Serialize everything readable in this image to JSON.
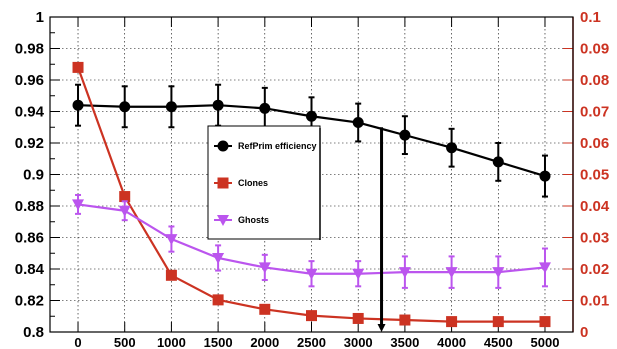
{
  "chart_data": {
    "type": "line",
    "x": [
      0,
      500,
      1000,
      1500,
      2000,
      2500,
      3000,
      3500,
      4000,
      4500,
      5000
    ],
    "xticks": [
      "0",
      "500",
      "1000",
      "1500",
      "2000",
      "2500",
      "3000",
      "3500",
      "4000",
      "4500",
      "5000"
    ],
    "xlim": [
      -300,
      5300
    ],
    "left_axis": {
      "ylim": [
        0.8,
        1.0
      ],
      "ticks": [
        "0.8",
        "0.82",
        "0.84",
        "0.86",
        "0.88",
        "0.9",
        "0.92",
        "0.94",
        "0.96",
        "0.98",
        "1"
      ],
      "color": "#000000"
    },
    "right_axis": {
      "ylim": [
        0,
        0.1
      ],
      "ticks": [
        "0",
        "0.01",
        "0.02",
        "0.03",
        "0.04",
        "0.05",
        "0.06",
        "0.07",
        "0.08",
        "0.09",
        "0.1"
      ],
      "color": "#cc3322"
    },
    "grid": true,
    "legend_placement": "center",
    "series": [
      {
        "name": "RefPrim efficiency",
        "axis": "left",
        "color": "#000000",
        "marker": "circle",
        "values": [
          0.944,
          0.943,
          0.943,
          0.944,
          0.942,
          0.937,
          0.933,
          0.925,
          0.917,
          0.908,
          0.899
        ],
        "errors": [
          0.013,
          0.013,
          0.013,
          0.013,
          0.013,
          0.012,
          0.012,
          0.012,
          0.012,
          0.012,
          0.013
        ]
      },
      {
        "name": "Clones",
        "axis": "right",
        "color": "#cc3322",
        "marker": "square",
        "values": [
          0.084,
          0.043,
          0.018,
          0.0102,
          0.0072,
          0.0052,
          0.0043,
          0.0038,
          0.0033,
          0.0033,
          0.0033
        ],
        "errors": [
          0,
          0,
          0,
          0,
          0,
          0,
          0,
          0,
          0,
          0,
          0
        ]
      },
      {
        "name": "Ghosts",
        "axis": "right",
        "color": "#bb55ee",
        "marker": "triangle-down",
        "values": [
          0.0405,
          0.0385,
          0.0295,
          0.0235,
          0.0205,
          0.0185,
          0.0185,
          0.019,
          0.019,
          0.019,
          0.0205
        ],
        "errors": [
          0.003,
          0.003,
          0.004,
          0.004,
          0.004,
          0.004,
          0.004,
          0.005,
          0.005,
          0.005,
          0.006
        ]
      }
    ],
    "annotation": {
      "type": "arrow",
      "x": 3250,
      "from": 0.93,
      "to": 0.8
    }
  }
}
